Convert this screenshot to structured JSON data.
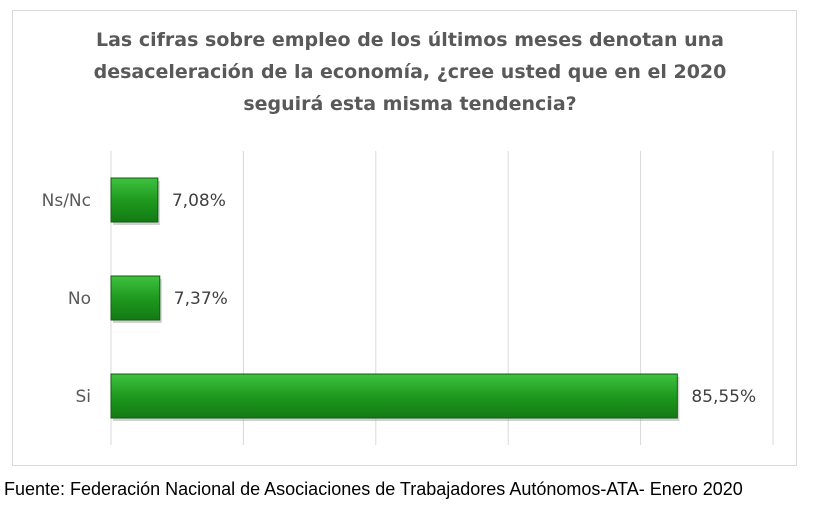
{
  "chart_data": {
    "type": "bar",
    "orientation": "horizontal",
    "title_lines": [
      "Las cifras sobre empleo de los últimos meses denotan una",
      "desaceleración de la economía, ¿cree usted que en el 2020",
      "seguirá esta misma tendencia?"
    ],
    "categories": [
      "Ns/Nc",
      "No",
      "Si"
    ],
    "values": [
      7.08,
      7.37,
      85.55
    ],
    "value_labels": [
      "7,08%",
      "7,37%",
      "85,55%"
    ],
    "xlim": [
      0,
      100
    ],
    "grid": true,
    "legend": "none",
    "bar_color": "#1f9a1f"
  },
  "source_text": "Fuente: Federación Nacional de Asociaciones de Trabajadores Autónomos-ATA- Enero 2020"
}
